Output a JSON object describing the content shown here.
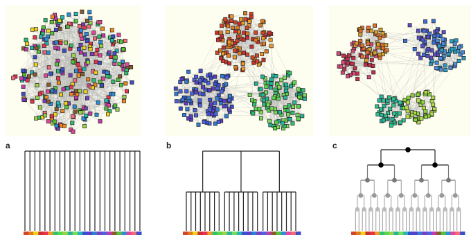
{
  "panels": [
    {
      "label": "a",
      "network": {
        "groups": 1,
        "nodes_per_group": 300,
        "palette": [
          "#e8334a",
          "#f08a1c",
          "#f2d21a",
          "#9ad24a",
          "#2fbf6f",
          "#25b7b0",
          "#2a8fd8",
          "#3c4fc7",
          "#7b3fc0",
          "#c33aa9",
          "#e2459a",
          "#8a5a2b",
          "#54c23a",
          "#f46a7a"
        ]
      },
      "dendrogram": {
        "type": "flat",
        "leaves": 24
      }
    },
    {
      "label": "b",
      "network": {
        "groups": 3,
        "nodes_per_group": 110,
        "group_colors": [
          [
            "#d2452a",
            "#e07a1e",
            "#c9302f",
            "#f09a28"
          ],
          [
            "#3b4fd0",
            "#5a3fc8",
            "#2f7fd8",
            "#4b63e0"
          ],
          [
            "#2fc36f",
            "#5ad84a",
            "#23b79a",
            "#7bdc5a"
          ]
        ]
      },
      "dendrogram": {
        "type": "three-level",
        "groups": 3,
        "leaves_per_group": 8
      }
    },
    {
      "label": "c",
      "network": {
        "groups": 6,
        "nodes_per_group": 45,
        "group_colors": [
          [
            "#c2304a",
            "#d64a7a"
          ],
          [
            "#e0702a",
            "#d8a02a"
          ],
          [
            "#3a6fd8",
            "#5a4fc8"
          ],
          [
            "#2aa0c8",
            "#4a8fe0"
          ],
          [
            "#2fc38f",
            "#25b7a0"
          ],
          [
            "#8ad83a",
            "#b0dc4a"
          ]
        ]
      },
      "dendrogram": {
        "type": "binary",
        "depth": 4
      }
    }
  ],
  "leaf_bar_colors": [
    "#d2452a",
    "#e07a1e",
    "#f2d21a",
    "#c9302f",
    "#e8334a",
    "#f09a28",
    "#2fc36f",
    "#5ad84a",
    "#9ad24a",
    "#23b79a",
    "#7bdc5a",
    "#25b7b0",
    "#3b4fd0",
    "#5a3fc8",
    "#2f7fd8",
    "#7b3fc0",
    "#4b63e0",
    "#c33aa9",
    "#8a5a2b",
    "#54c23a",
    "#2a8fd8",
    "#e2459a",
    "#f46a7a",
    "#3c4fc7"
  ]
}
